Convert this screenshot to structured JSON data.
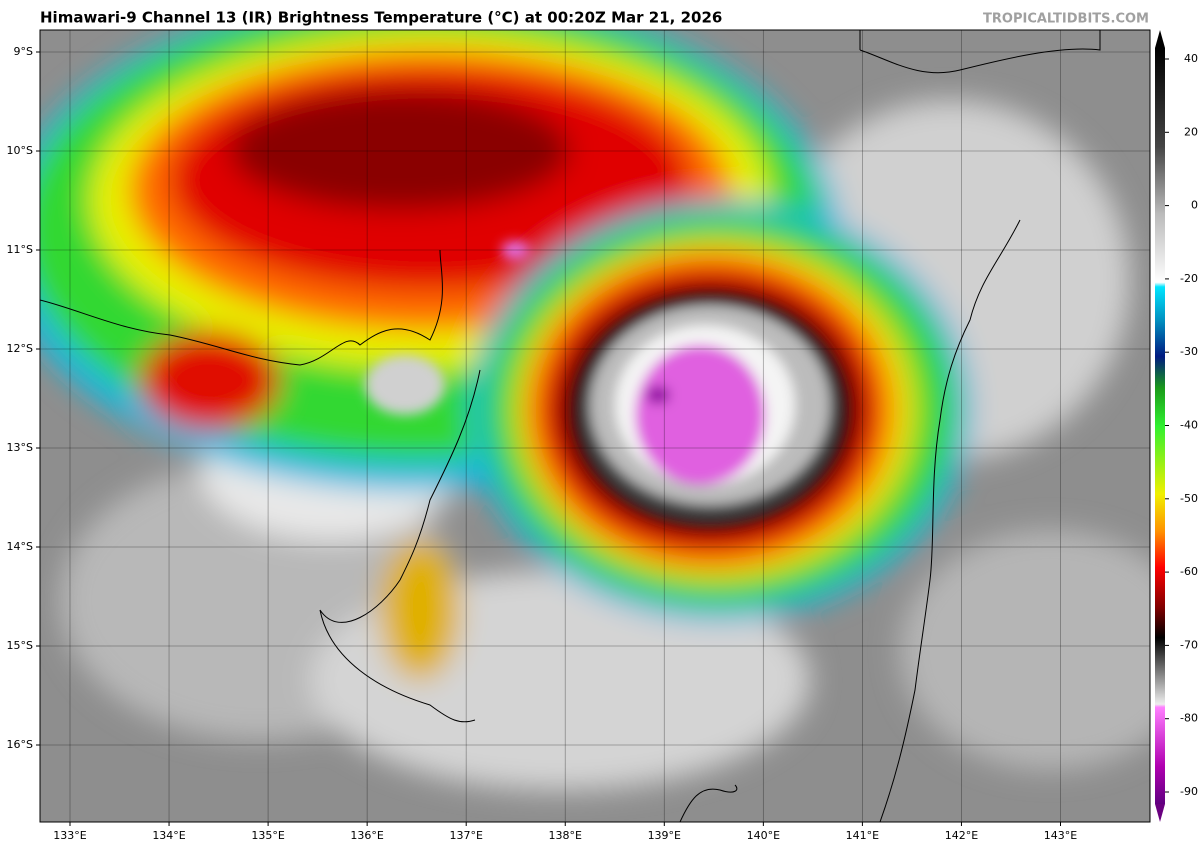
{
  "header": {
    "title": "Himawari-9 Channel 13 (IR) Brightness Temperature (°C) at 00:20Z Mar 21, 2026",
    "watermark": "TROPICALTIDBITS.COM"
  },
  "map": {
    "lon_labels": [
      "133°E",
      "134°E",
      "135°E",
      "136°E",
      "137°E",
      "138°E",
      "139°E",
      "140°E",
      "141°E",
      "142°E",
      "143°E"
    ],
    "lat_labels": [
      "9°S",
      "10°S",
      "11°S",
      "12°S",
      "13°S",
      "14°S",
      "15°S",
      "16°S"
    ]
  },
  "colorbar": {
    "ticks": [
      40,
      20,
      0,
      -20,
      -30,
      -40,
      -50,
      -60,
      -70,
      -80,
      -90
    ]
  }
}
